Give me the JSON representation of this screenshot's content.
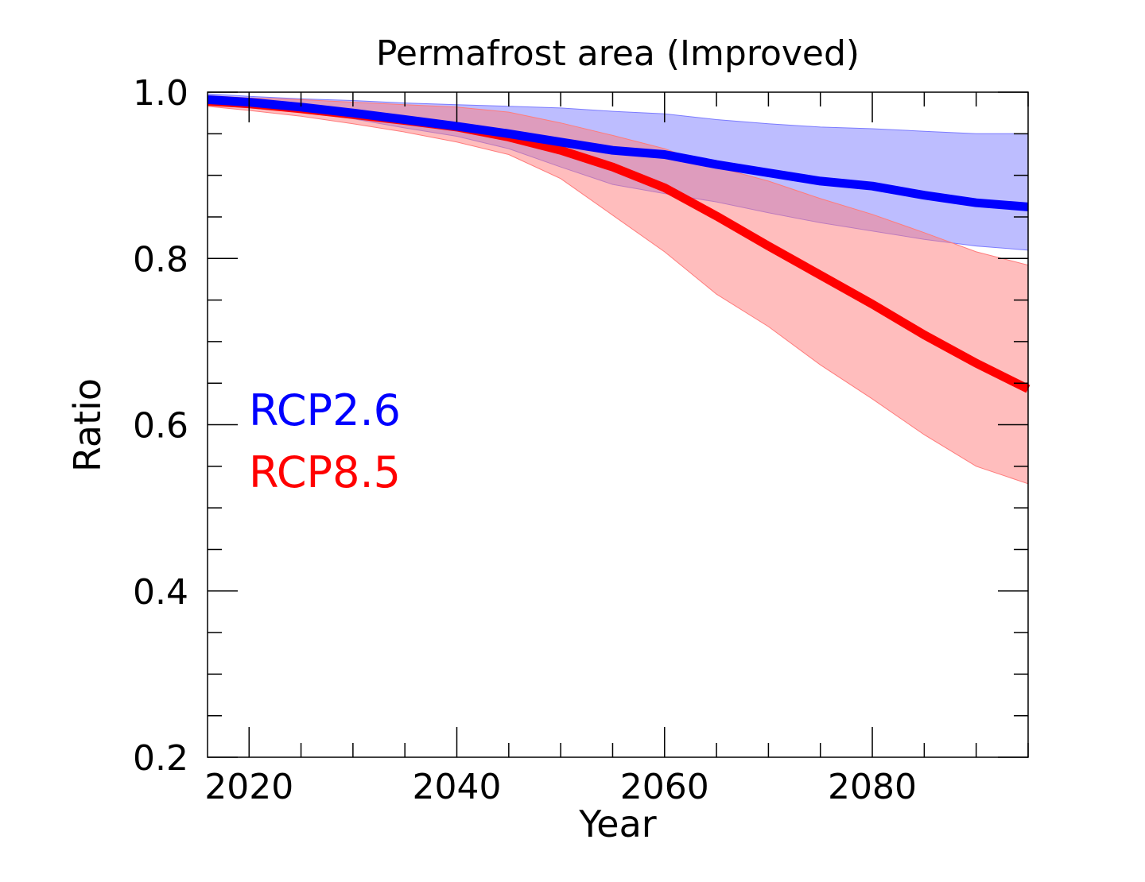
{
  "chart_data": {
    "type": "line",
    "title": "Permafrost area (Improved)",
    "xlabel": "Year",
    "ylabel": "Ratio",
    "xlim": [
      2016,
      2095
    ],
    "ylim": [
      0.2,
      1.0
    ],
    "x_ticks": [
      2020,
      2040,
      2060,
      2080
    ],
    "y_ticks": [
      0.2,
      0.4,
      0.6,
      0.8,
      1.0
    ],
    "y_tick_labels": [
      "0.2",
      "0.4",
      "0.6",
      "0.8",
      "1.0"
    ],
    "grid": false,
    "x": [
      2016,
      2020,
      2025,
      2030,
      2035,
      2040,
      2045,
      2050,
      2055,
      2060,
      2065,
      2070,
      2075,
      2080,
      2085,
      2090,
      2095
    ],
    "series": [
      {
        "name": "RCP2.6",
        "color": "#0000ff",
        "band_color": "#7b7bff",
        "values": [
          0.991,
          0.988,
          0.982,
          0.975,
          0.967,
          0.959,
          0.95,
          0.94,
          0.93,
          0.925,
          0.913,
          0.903,
          0.893,
          0.887,
          0.876,
          0.867,
          0.862
        ],
        "upper": [
          0.998,
          0.995,
          0.992,
          0.99,
          0.987,
          0.985,
          0.983,
          0.981,
          0.977,
          0.974,
          0.967,
          0.962,
          0.958,
          0.956,
          0.953,
          0.95,
          0.95
        ],
        "lower": [
          0.985,
          0.981,
          0.976,
          0.968,
          0.957,
          0.947,
          0.932,
          0.91,
          0.889,
          0.878,
          0.868,
          0.855,
          0.843,
          0.833,
          0.823,
          0.815,
          0.81
        ]
      },
      {
        "name": "RCP8.5",
        "color": "#ff0000",
        "band_color": "#ff7b7b",
        "values": [
          0.989,
          0.986,
          0.98,
          0.973,
          0.966,
          0.958,
          0.946,
          0.93,
          0.91,
          0.885,
          0.851,
          0.815,
          0.78,
          0.745,
          0.708,
          0.674,
          0.643
        ],
        "upper": [
          0.996,
          0.993,
          0.991,
          0.988,
          0.985,
          0.982,
          0.976,
          0.963,
          0.948,
          0.932,
          0.91,
          0.893,
          0.872,
          0.853,
          0.831,
          0.808,
          0.792
        ],
        "lower": [
          0.983,
          0.978,
          0.971,
          0.962,
          0.952,
          0.94,
          0.925,
          0.896,
          0.852,
          0.808,
          0.757,
          0.718,
          0.672,
          0.631,
          0.588,
          0.55,
          0.529
        ]
      }
    ],
    "legend": {
      "placement": "inside-left",
      "entries": [
        {
          "label": "RCP2.6",
          "color": "#0000ff"
        },
        {
          "label": "RCP8.5",
          "color": "#ff0000"
        }
      ]
    }
  }
}
